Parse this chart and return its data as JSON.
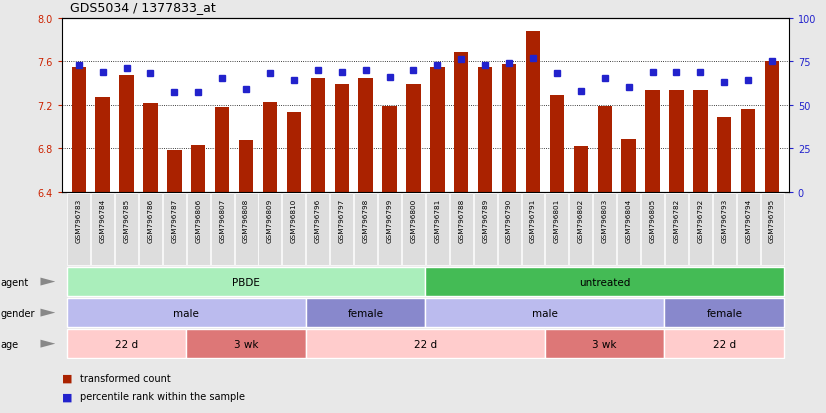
{
  "title": "GDS5034 / 1377833_at",
  "samples": [
    "GSM796783",
    "GSM796784",
    "GSM796785",
    "GSM796786",
    "GSM796787",
    "GSM796806",
    "GSM796807",
    "GSM796808",
    "GSM796809",
    "GSM796810",
    "GSM796796",
    "GSM796797",
    "GSM796798",
    "GSM796799",
    "GSM796800",
    "GSM796781",
    "GSM796788",
    "GSM796789",
    "GSM796790",
    "GSM796791",
    "GSM796801",
    "GSM796802",
    "GSM796803",
    "GSM796804",
    "GSM796805",
    "GSM796782",
    "GSM796792",
    "GSM796793",
    "GSM796794",
    "GSM796795"
  ],
  "bar_values": [
    7.55,
    7.27,
    7.47,
    7.21,
    6.78,
    6.83,
    7.18,
    6.87,
    7.22,
    7.13,
    7.44,
    7.39,
    7.44,
    7.19,
    7.39,
    7.55,
    7.68,
    7.55,
    7.57,
    7.88,
    7.29,
    6.82,
    7.19,
    6.88,
    7.33,
    7.33,
    7.33,
    7.09,
    7.16,
    7.6
  ],
  "percentile_values": [
    73,
    69,
    71,
    68,
    57,
    57,
    65,
    59,
    68,
    64,
    70,
    69,
    70,
    66,
    70,
    73,
    76,
    73,
    74,
    77,
    68,
    58,
    65,
    60,
    69,
    69,
    69,
    63,
    64,
    75
  ],
  "bar_color": "#aa2200",
  "dot_color": "#2222cc",
  "ylim_left": [
    6.4,
    8.0
  ],
  "ylim_right": [
    0,
    100
  ],
  "yticks_left": [
    6.4,
    6.8,
    7.2,
    7.6,
    8.0
  ],
  "yticks_right": [
    0,
    25,
    50,
    75,
    100
  ],
  "grid_values": [
    6.8,
    7.2,
    7.6
  ],
  "agent_groups": [
    {
      "label": "PBDE",
      "start": 0,
      "end": 15,
      "color": "#aaeebb"
    },
    {
      "label": "untreated",
      "start": 15,
      "end": 30,
      "color": "#44bb55"
    }
  ],
  "gender_groups": [
    {
      "label": "male",
      "start": 0,
      "end": 10,
      "color": "#bbbbee"
    },
    {
      "label": "female",
      "start": 10,
      "end": 15,
      "color": "#8888cc"
    },
    {
      "label": "male",
      "start": 15,
      "end": 25,
      "color": "#bbbbee"
    },
    {
      "label": "female",
      "start": 25,
      "end": 30,
      "color": "#8888cc"
    }
  ],
  "age_groups": [
    {
      "label": "22 d",
      "start": 0,
      "end": 5,
      "color": "#ffcccc"
    },
    {
      "label": "3 wk",
      "start": 5,
      "end": 10,
      "color": "#dd7777"
    },
    {
      "label": "22 d",
      "start": 10,
      "end": 20,
      "color": "#ffcccc"
    },
    {
      "label": "3 wk",
      "start": 20,
      "end": 25,
      "color": "#dd7777"
    },
    {
      "label": "22 d",
      "start": 25,
      "end": 30,
      "color": "#ffcccc"
    }
  ],
  "legend_items": [
    {
      "label": "transformed count",
      "color": "#aa2200"
    },
    {
      "label": "percentile rank within the sample",
      "color": "#2222cc"
    }
  ],
  "fig_bg": "#e8e8e8",
  "plot_bg": "#ffffff",
  "xtick_box_color": "#cccccc"
}
